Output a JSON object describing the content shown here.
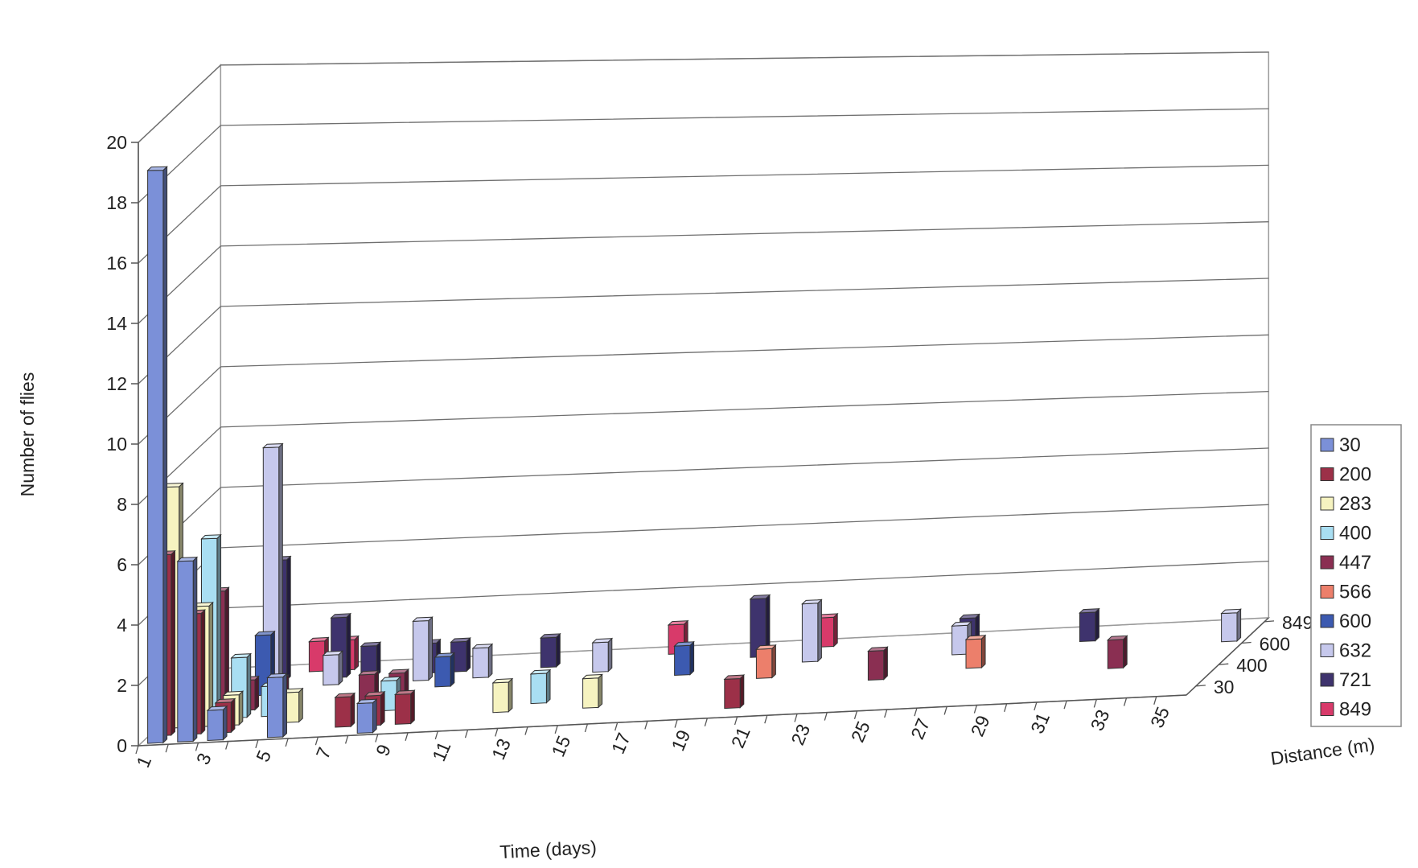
{
  "chart_data": {
    "type": "bar",
    "subtype": "3d-column",
    "title": "",
    "xlabel": "Time (days)",
    "ylabel": "Number of flies",
    "zlabel": "Distance (m)",
    "ylim": [
      0,
      20
    ],
    "y_ticks": [
      "0",
      "2",
      "4",
      "6",
      "8",
      "10",
      "12",
      "14",
      "16",
      "18",
      "20"
    ],
    "x_tick_labels": [
      "1",
      "3",
      "5",
      "7",
      "9",
      "11",
      "13",
      "15",
      "17",
      "19",
      "21",
      "23",
      "25",
      "27",
      "29",
      "31",
      "33",
      "35"
    ],
    "z_tick_labels": [
      "30",
      "400",
      "600",
      "849"
    ],
    "grid": true,
    "legend_position": "right",
    "series": [
      {
        "name": "30",
        "color": "#7b90d8",
        "points": [
          [
            1,
            19
          ],
          [
            2,
            6
          ],
          [
            3,
            1
          ],
          [
            5,
            2
          ],
          [
            8,
            1
          ]
        ]
      },
      {
        "name": "200",
        "color": "#9c3048",
        "points": [
          [
            1,
            6
          ],
          [
            2,
            4
          ],
          [
            3,
            1
          ],
          [
            7,
            1
          ],
          [
            8,
            1
          ],
          [
            9,
            1
          ],
          [
            20,
            1
          ]
        ]
      },
      {
        "name": "283",
        "color": "#f6f3c0",
        "points": [
          [
            1,
            8
          ],
          [
            2,
            4
          ],
          [
            3,
            1
          ],
          [
            5,
            1
          ],
          [
            12,
            1
          ],
          [
            15,
            1
          ]
        ]
      },
      {
        "name": "400",
        "color": "#a9def2",
        "points": [
          [
            2,
            6
          ],
          [
            3,
            2
          ],
          [
            4,
            1
          ],
          [
            8,
            1
          ],
          [
            13,
            1
          ]
        ]
      },
      {
        "name": "447",
        "color": "#8a2f52",
        "points": [
          [
            2,
            4
          ],
          [
            3,
            1
          ],
          [
            4,
            1
          ],
          [
            7,
            1
          ],
          [
            8,
            1
          ],
          [
            24,
            1
          ],
          [
            32,
            1
          ]
        ]
      },
      {
        "name": "566",
        "color": "#ec7f6b",
        "points": [
          [
            20,
            1
          ],
          [
            27,
            1
          ]
        ]
      },
      {
        "name": "600",
        "color": "#3c5ab0",
        "points": [
          [
            3,
            2
          ],
          [
            9,
            1
          ],
          [
            17,
            1
          ]
        ]
      },
      {
        "name": "632",
        "color": "#c6c8ec",
        "points": [
          [
            3,
            8
          ],
          [
            5,
            1
          ],
          [
            8,
            2
          ],
          [
            10,
            1
          ],
          [
            14,
            1
          ],
          [
            21,
            2
          ],
          [
            26,
            1
          ],
          [
            35,
            1
          ]
        ]
      },
      {
        "name": "721",
        "color": "#3e336d",
        "points": [
          [
            3,
            4
          ],
          [
            5,
            2
          ],
          [
            6,
            1
          ],
          [
            8,
            1
          ],
          [
            9,
            1
          ],
          [
            12,
            1
          ],
          [
            19,
            2
          ],
          [
            26,
            1
          ],
          [
            30,
            1
          ]
        ]
      },
      {
        "name": "849",
        "color": "#d83a6a",
        "points": [
          [
            4,
            1
          ],
          [
            5,
            1
          ],
          [
            16,
            1
          ],
          [
            21,
            1
          ]
        ]
      }
    ]
  }
}
